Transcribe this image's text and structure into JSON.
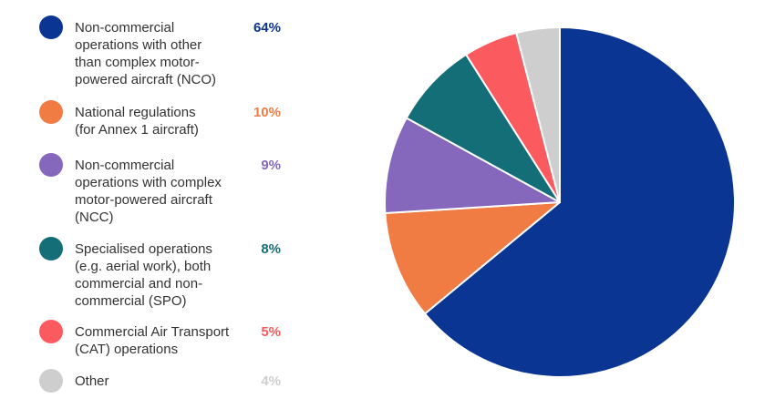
{
  "chart_data": {
    "type": "pie",
    "title": "",
    "legend_position": "left",
    "series": [
      {
        "name": "Non-commercial operations with other than complex motor-powered aircraft (NCO)",
        "value": 64,
        "label": "64%",
        "color": "#0A3593"
      },
      {
        "name": "National regulations (for Annex 1 aircraft)",
        "value": 10,
        "label": "10%",
        "color": "#F07B43"
      },
      {
        "name": "Non-commercial operations with complex motor-powered aircraft (NCC)",
        "value": 9,
        "label": "9%",
        "color": "#8567BC"
      },
      {
        "name": "Specialised operations (e.g. aerial work), both commercial and non-commercial (SPO)",
        "value": 8,
        "label": "8%",
        "color": "#136E78"
      },
      {
        "name": "Commercial Air Transport (CAT) operations",
        "value": 5,
        "label": "5%",
        "color": "#FB5A5E"
      },
      {
        "name": "Other",
        "value": 4,
        "label": "4%",
        "color": "#CECECE"
      }
    ]
  }
}
